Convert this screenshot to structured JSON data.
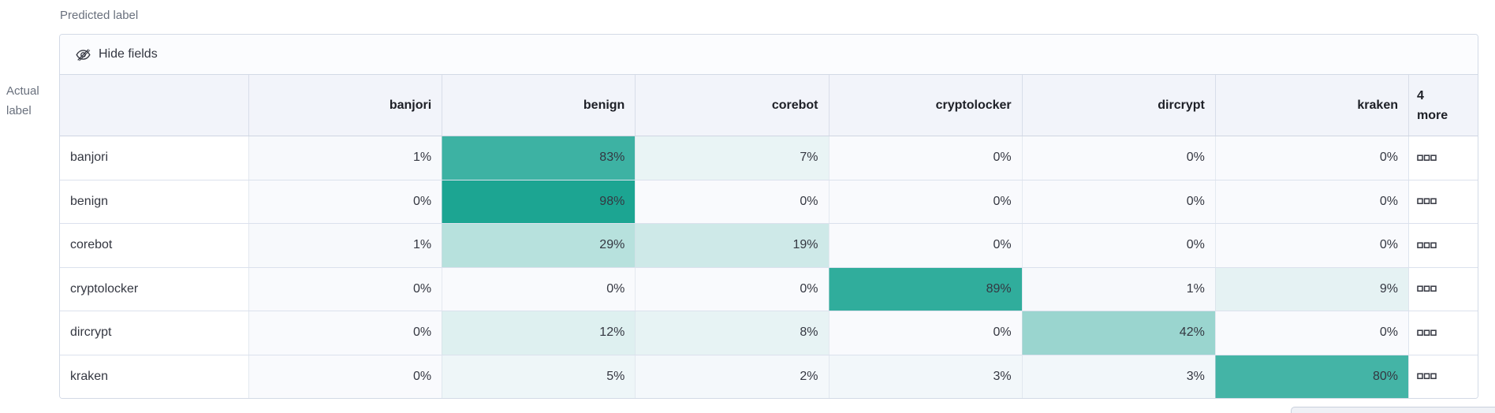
{
  "axis_labels": {
    "predicted": "Predicted label",
    "actual_line1": "Actual",
    "actual_line2": "label"
  },
  "toolbar": {
    "hide_fields_label": "Hide fields"
  },
  "icons": {
    "hide_fields": "eye-closed-icon",
    "more_cell": "boxes-horizontal-icon"
  },
  "grid": {
    "value_suffix": "%",
    "more_column_header": {
      "line1": "4",
      "line2": "more"
    }
  },
  "chart_data": {
    "type": "heatmap",
    "x_axis_label": "Predicted label",
    "y_axis_label": "Actual label",
    "x_categories": [
      "banjori",
      "benign",
      "corebot",
      "cryptolocker",
      "dircrypt",
      "kraken"
    ],
    "y_categories": [
      "banjori",
      "benign",
      "corebot",
      "cryptolocker",
      "dircrypt",
      "kraken"
    ],
    "values_percent": [
      [
        1,
        83,
        7,
        0,
        0,
        0
      ],
      [
        0,
        98,
        0,
        0,
        0,
        0
      ],
      [
        1,
        29,
        19,
        0,
        0,
        0
      ],
      [
        0,
        0,
        0,
        89,
        1,
        9
      ],
      [
        0,
        12,
        8,
        0,
        42,
        0
      ],
      [
        0,
        5,
        2,
        3,
        3,
        80
      ]
    ],
    "hidden_columns_count": 4,
    "color_scale": {
      "zero": "#f9fafd",
      "full": "#17a390",
      "domain": [
        0,
        100
      ]
    }
  },
  "colors": {
    "container_border": "#d3dae6",
    "header_bg": "#f2f4fa",
    "toolbar_bg": "#fbfcfe",
    "text": "#343741",
    "header_text": "#1d1f26",
    "muted_text": "#69707d",
    "row_border": "#dbe1ed"
  }
}
